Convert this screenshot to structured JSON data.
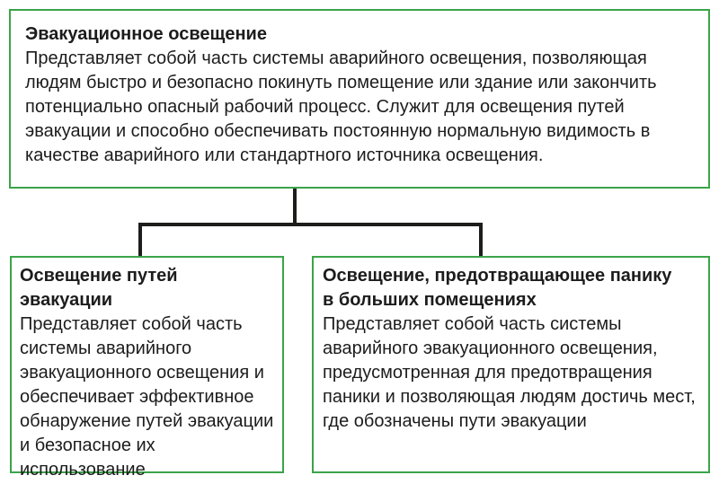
{
  "diagram": {
    "root": {
      "title": "Эвакуационное освещение",
      "body": "Представляет собой часть системы аварийного освещения, позволяющая людям быстро и безопасно покинуть помещение или здание или закончить потенциально опасный рабочий процесс. Служит для освещения путей эвакуации и способно обеспечивать постоянную нормальную видимость в качестве аварийного или стандартного источника освещения."
    },
    "children": [
      {
        "title": "Освещение путей\nэвакуации",
        "body": "Представляет собой часть системы аварийного эвакуационного освещения и обеспечивает эффективное обнаружение путей эвакуации и безопасное их использование"
      },
      {
        "title": "Освещение, предотвращающее панику\nв больших помещениях",
        "body": "Представляет собой часть системы аварийного эвакуационного освещения, предусмотренная для предотвращения паники и позволяющая людям достичь мест, где обозначены пути эвакуации"
      }
    ],
    "colors": {
      "box_border_green": "#3ba449",
      "connector_black": "#1d1d1b",
      "text": "#1c1c1c",
      "background": "#ffffff"
    }
  }
}
